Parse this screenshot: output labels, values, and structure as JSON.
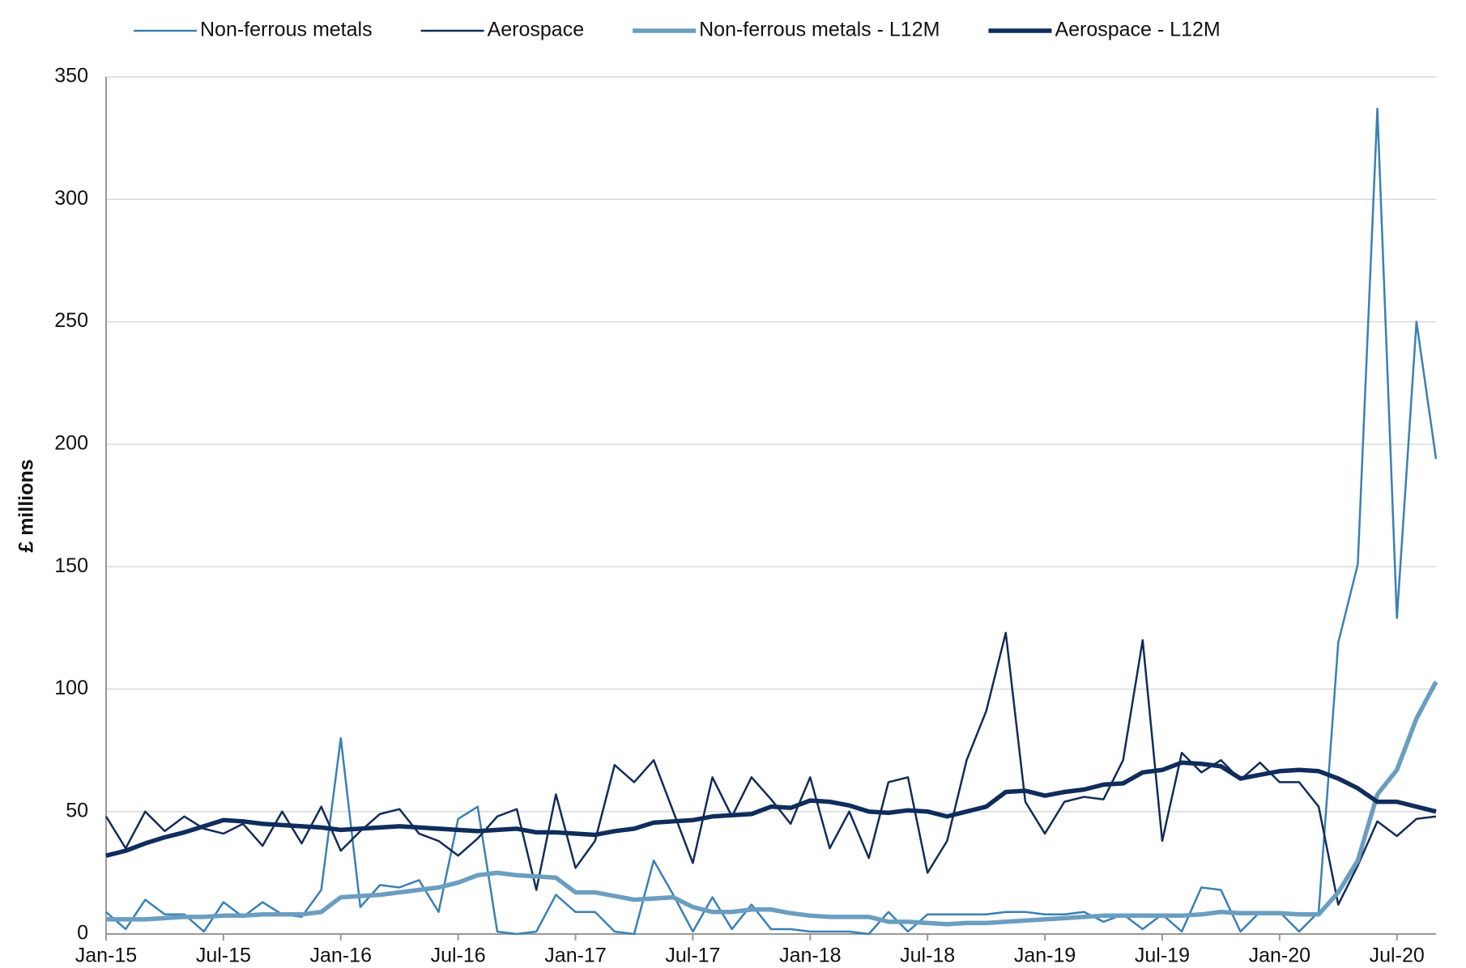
{
  "chart_data": {
    "type": "line",
    "ylabel": "£ millions",
    "categories": [
      "Jan-15",
      null,
      null,
      null,
      null,
      null,
      "Jul-15",
      null,
      null,
      null,
      null,
      null,
      "Jan-16",
      null,
      null,
      null,
      null,
      null,
      "Jul-16",
      null,
      null,
      null,
      null,
      null,
      "Jan-17",
      null,
      null,
      null,
      null,
      null,
      "Jul-17",
      null,
      null,
      null,
      null,
      null,
      "Jan-18",
      null,
      null,
      null,
      null,
      null,
      "Jul-18",
      null,
      null,
      null,
      null,
      null,
      "Jan-19",
      null,
      null,
      null,
      null,
      null,
      "Jul-19",
      null,
      null,
      null,
      null,
      null,
      "Jan-20",
      null,
      null,
      null,
      null,
      null,
      "Jul-20",
      null,
      null
    ],
    "ylim": [
      0,
      350
    ],
    "yticks": [
      0,
      50,
      100,
      150,
      200,
      250,
      300,
      350
    ],
    "grid": true,
    "legend": "top",
    "series": [
      {
        "name": "Non-ferrous metals",
        "color": "#3a80b3",
        "linewidth": 2.5,
        "values": [
          9,
          2,
          14,
          8,
          8,
          1,
          13,
          7,
          13,
          8,
          7,
          18,
          80,
          11,
          20,
          19,
          22,
          9,
          47,
          52,
          1,
          0,
          1,
          16,
          9,
          9,
          1,
          0,
          30,
          16,
          1,
          15,
          2,
          12,
          2,
          2,
          1,
          1,
          1,
          0,
          9,
          1,
          8,
          8,
          8,
          8,
          9,
          9,
          8,
          8,
          9,
          5,
          8,
          2,
          8,
          1,
          19,
          18,
          1,
          9,
          9,
          1,
          9,
          119,
          151,
          337,
          129,
          250,
          194
        ]
      },
      {
        "name": "Aerospace",
        "color": "#122c58",
        "linewidth": 2.5,
        "values": [
          48,
          35,
          50,
          42,
          48,
          43,
          41,
          45,
          36,
          50,
          37,
          52,
          34,
          42,
          49,
          51,
          41,
          38,
          32,
          39,
          48,
          51,
          18,
          57,
          27,
          38,
          69,
          62,
          71,
          50,
          29,
          64,
          48,
          64,
          55,
          45,
          64,
          35,
          50,
          31,
          62,
          64,
          25,
          38,
          71,
          91,
          123,
          54,
          41,
          54,
          56,
          55,
          71,
          120,
          38,
          74,
          66,
          71,
          63,
          70,
          62,
          62,
          52,
          12,
          28,
          46,
          40,
          47,
          48
        ]
      },
      {
        "name": "Non-ferrous metals - L12M",
        "color": "#6a9ec0",
        "linewidth": 5.5,
        "values": [
          6,
          6,
          6,
          6.5,
          7,
          7,
          7.5,
          7.5,
          8,
          8,
          8,
          9,
          15,
          15.5,
          16,
          17,
          18,
          19,
          21,
          24,
          25,
          24,
          23.5,
          23,
          17,
          17,
          15.5,
          14,
          14.5,
          15,
          11,
          9,
          9,
          10,
          10,
          8.5,
          7.5,
          7,
          7,
          7,
          5,
          5,
          4.5,
          4,
          4.5,
          4.5,
          5,
          5.5,
          6,
          6.5,
          7,
          7.5,
          7.5,
          7.5,
          7.5,
          7.5,
          8,
          9,
          8.5,
          8.5,
          8.5,
          8,
          8,
          17,
          30,
          57,
          67,
          88,
          103
        ]
      },
      {
        "name": "Aerospace - L12M",
        "color": "#0f2d5c",
        "linewidth": 5.5,
        "values": [
          32,
          34,
          37,
          39.5,
          41.5,
          44,
          46.5,
          46,
          45,
          44.5,
          44,
          43.5,
          42.5,
          43,
          43.5,
          44,
          43.5,
          43,
          42.5,
          42,
          42.5,
          43,
          41.5,
          41.5,
          41,
          40.5,
          42,
          43,
          45.5,
          46,
          46.5,
          48,
          48.5,
          49,
          52,
          51.5,
          54.5,
          54,
          52.5,
          50,
          49.5,
          50.5,
          50,
          48,
          50,
          52,
          58,
          58.5,
          56.5,
          58,
          59,
          61,
          61.5,
          66,
          67,
          70,
          69.5,
          68.5,
          63.5,
          65,
          66.5,
          67,
          66.5,
          63.5,
          59.5,
          54,
          54,
          52,
          50
        ]
      }
    ]
  }
}
